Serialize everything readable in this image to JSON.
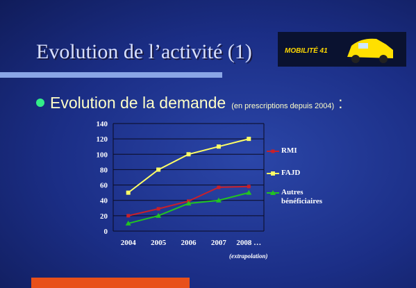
{
  "slide": {
    "title": "Evolution de l’activité (1)",
    "logo": "MOBILITÉ 41",
    "heading": "Evolution de la demande",
    "heading_note": "(en prescriptions depuis 2004)",
    "heading_colon": ":",
    "footnote": "(extrapolation)"
  },
  "chart_data": {
    "type": "line",
    "categories": [
      "2004",
      "2005",
      "2006",
      "2007",
      "2008 …"
    ],
    "series": [
      {
        "name": "RMI",
        "color": "#c8202a",
        "values": [
          20,
          29,
          39,
          57,
          58
        ]
      },
      {
        "name": "FAJD",
        "color": "#ffff66",
        "values": [
          50,
          80,
          100,
          110,
          120
        ]
      },
      {
        "name": "Autres bénéficiaires",
        "color": "#22c322",
        "values": [
          10,
          20,
          36,
          40,
          50
        ]
      }
    ],
    "ylim": [
      0,
      140
    ],
    "yticks": [
      0,
      20,
      40,
      60,
      80,
      100,
      120,
      140
    ],
    "grid": true,
    "legend": "right"
  }
}
